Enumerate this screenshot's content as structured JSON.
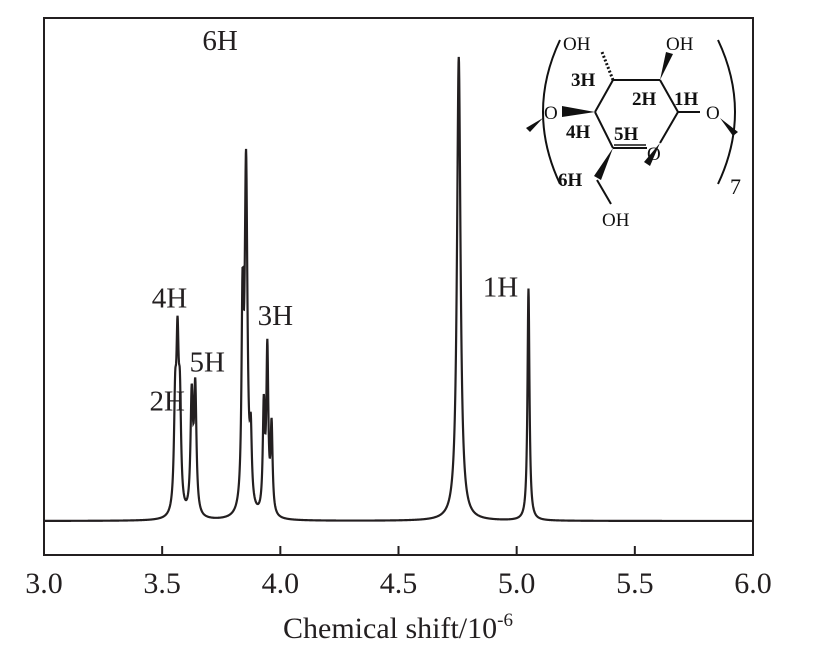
{
  "chart_data": {
    "type": "line",
    "xlabel": "Chemical shift/10",
    "xlabel_superscript": "-6",
    "ylabel": "",
    "xlim": [
      3.0,
      6.0
    ],
    "x_ticks": [
      "3.0",
      "3.5",
      "4.0",
      "4.5",
      "5.0",
      "5.5",
      "6.0"
    ],
    "grid": false,
    "series": [
      {
        "peaks": [
          {
            "center": 3.555,
            "height": 0.34,
            "width": 0.006
          },
          {
            "center": 3.565,
            "height": 0.52,
            "width": 0.006
          },
          {
            "center": 3.575,
            "height": 0.34,
            "width": 0.006
          },
          {
            "center": 3.625,
            "height": 0.4,
            "width": 0.006
          },
          {
            "center": 3.64,
            "height": 0.43,
            "width": 0.006
          },
          {
            "center": 3.84,
            "height": 0.65,
            "width": 0.005
          },
          {
            "center": 3.855,
            "height": 1.2,
            "width": 0.007
          },
          {
            "center": 3.875,
            "height": 0.22,
            "width": 0.005
          },
          {
            "center": 3.93,
            "height": 0.36,
            "width": 0.005
          },
          {
            "center": 3.945,
            "height": 0.56,
            "width": 0.005
          },
          {
            "center": 3.963,
            "height": 0.3,
            "width": 0.005
          },
          {
            "center": 4.755,
            "height": 1.6,
            "width": 0.009
          },
          {
            "center": 5.05,
            "height": 0.8,
            "width": 0.005
          }
        ]
      }
    ],
    "peak_labels": [
      {
        "text": "6H",
        "x": 3.855
      },
      {
        "text": "4H",
        "x": 3.565
      },
      {
        "text": "5H",
        "x": 3.64
      },
      {
        "text": "2H",
        "x": 3.555
      },
      {
        "text": "3H",
        "x": 3.945
      },
      {
        "text": "1H",
        "x": 5.05
      }
    ]
  },
  "structure": {
    "oh_top_left": "OH",
    "oh_top_right": "OH",
    "h3": "3H",
    "h2": "2H",
    "h1": "1H",
    "h4": "4H",
    "h5": "5H",
    "h6": "6H",
    "o_left": "O",
    "o_right": "O",
    "o_ring": "O",
    "oh_bottom": "OH",
    "repeat_count": "7"
  }
}
